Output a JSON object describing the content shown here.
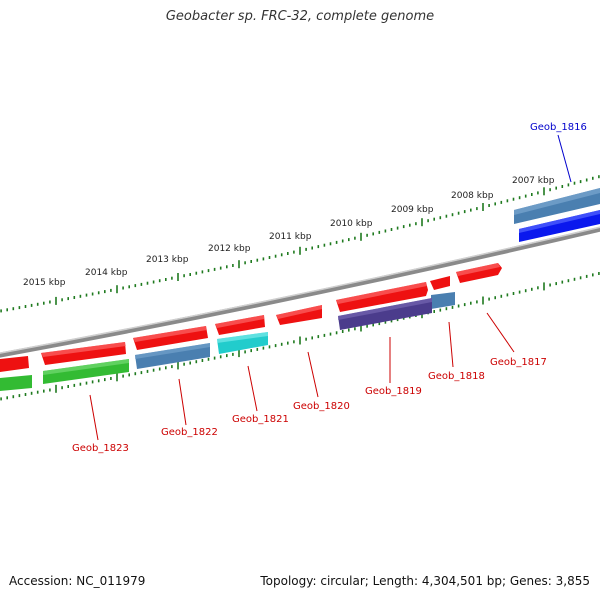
{
  "title": "Geobacter sp. FRC-32, complete genome",
  "footer": {
    "accession": "Accession: NC_011979",
    "summary": "Topology: circular; Length: 4,304,501 bp; Genes: 3,855"
  },
  "colors": {
    "backbone": "#8a8a8a",
    "ticks": "#1f7a1f",
    "label_forward": "#0000cc",
    "label_reverse": "#cc0000",
    "leader_forward": "#0000cc",
    "leader_reverse": "#cc0000"
  },
  "kbp_labels": [
    "2015 kbp",
    "2014 kbp",
    "2013 kbp",
    "2012 kbp",
    "2011 kbp",
    "2010 kbp",
    "2009 kbp",
    "2008 kbp",
    "2007 kbp"
  ],
  "genes": [
    {
      "name": "Geob_1816",
      "strand": "forward"
    },
    {
      "name": "Geob_1817",
      "strand": "reverse"
    },
    {
      "name": "Geob_1818",
      "strand": "reverse"
    },
    {
      "name": "Geob_1819",
      "strand": "reverse"
    },
    {
      "name": "Geob_1820",
      "strand": "reverse"
    },
    {
      "name": "Geob_1821",
      "strand": "reverse"
    },
    {
      "name": "Geob_1822",
      "strand": "reverse"
    },
    {
      "name": "Geob_1823",
      "strand": "reverse"
    }
  ]
}
